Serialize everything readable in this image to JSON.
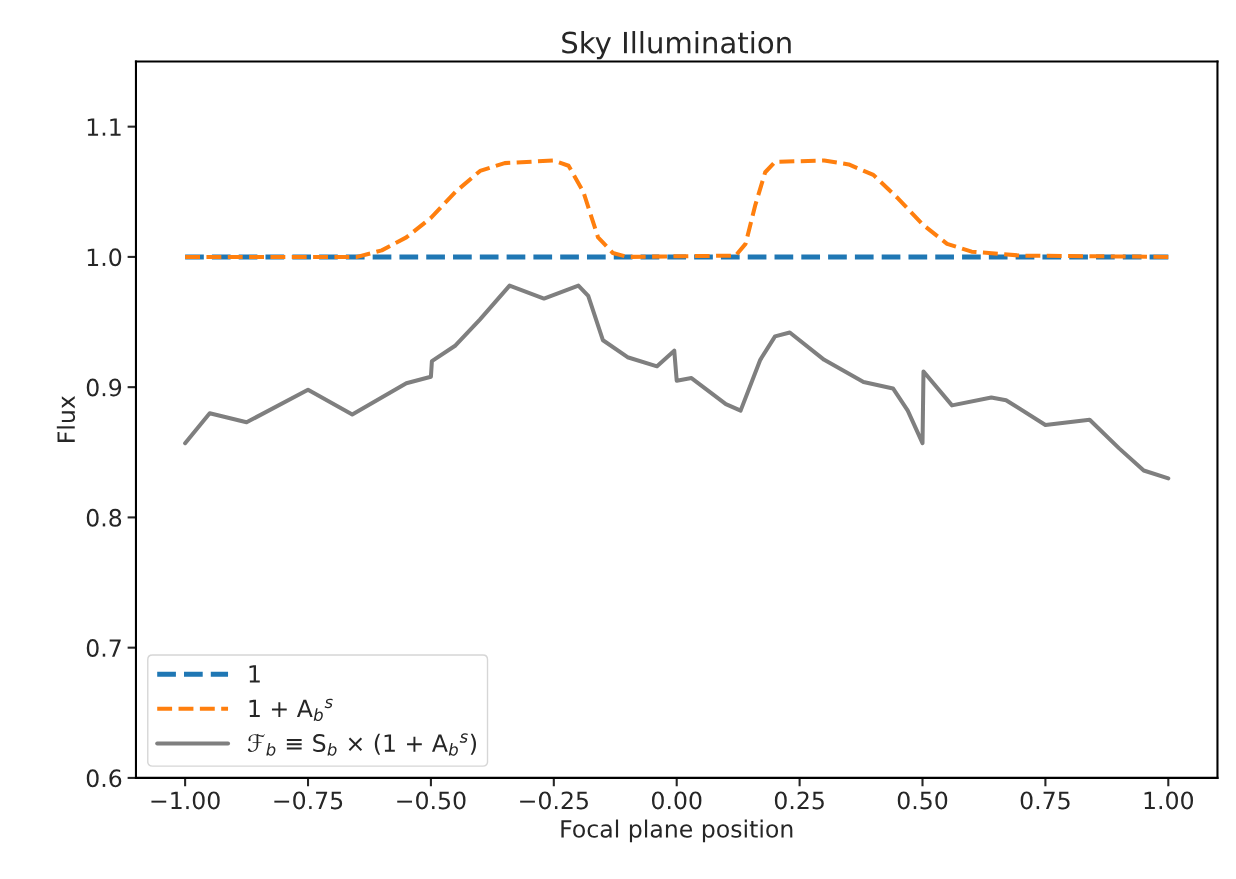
{
  "chart_data": {
    "type": "line",
    "title": "Sky Illumination",
    "xlabel": "Focal plane position",
    "ylabel": "Flux",
    "xlim": [
      -1.1,
      1.1
    ],
    "xticks": [
      {
        "value": -1.0,
        "label": "−1.00"
      },
      {
        "value": -0.75,
        "label": "−0.75"
      },
      {
        "value": -0.5,
        "label": "−0.50"
      },
      {
        "value": -0.25,
        "label": "−0.25"
      },
      {
        "value": 0.0,
        "label": "0.00"
      },
      {
        "value": 0.25,
        "label": "0.25"
      },
      {
        "value": 0.5,
        "label": "0.50"
      },
      {
        "value": 0.75,
        "label": "0.75"
      },
      {
        "value": 1.0,
        "label": "1.00"
      }
    ],
    "ylim": [
      0.6,
      1.15
    ],
    "yticks": [
      {
        "value": 0.6,
        "label": "0.6"
      },
      {
        "value": 0.7,
        "label": "0.7"
      },
      {
        "value": 0.8,
        "label": "0.8"
      },
      {
        "value": 0.9,
        "label": "0.9"
      },
      {
        "value": 1.0,
        "label": "1.0"
      },
      {
        "value": 1.1,
        "label": "1.1"
      }
    ],
    "legend": "bottom left",
    "grid": false,
    "series": [
      {
        "name": "1",
        "color": "#1f77b4",
        "line_style": "dashed",
        "x": [
          -1.0,
          1.0
        ],
        "values": [
          1.0,
          1.0
        ]
      },
      {
        "name": "1 + A$_{b}$$^{s}$",
        "color": "#ff7f0e",
        "line_style": "dashed",
        "x": [
          -1.0,
          -0.65,
          -0.6,
          -0.55,
          -0.5,
          -0.45,
          -0.4,
          -0.35,
          -0.25,
          -0.22,
          -0.19,
          -0.16,
          -0.13,
          -0.1,
          0.12,
          0.14,
          0.16,
          0.18,
          0.2,
          0.3,
          0.35,
          0.4,
          0.45,
          0.5,
          0.55,
          0.6,
          0.7,
          1.0
        ],
        "values": [
          1.0,
          1.0,
          1.005,
          1.015,
          1.03,
          1.05,
          1.066,
          1.072,
          1.074,
          1.07,
          1.05,
          1.015,
          1.003,
          1.0,
          1.001,
          1.01,
          1.04,
          1.065,
          1.073,
          1.074,
          1.071,
          1.063,
          1.045,
          1.025,
          1.01,
          1.004,
          1.001,
          1.0
        ]
      },
      {
        "name": "ℱ$_{b}$ ≡ S$_{b}$ × (1 + A$_{b}$$^{s}$)",
        "color": "#7f7f7f",
        "line_style": "solid",
        "x": [
          -1.0,
          -0.95,
          -0.875,
          -0.75,
          -0.66,
          -0.55,
          -0.5,
          -0.498,
          -0.45,
          -0.4,
          -0.34,
          -0.27,
          -0.2,
          -0.18,
          -0.15,
          -0.1,
          -0.04,
          -0.005,
          0.0,
          0.03,
          0.1,
          0.13,
          0.17,
          0.2,
          0.23,
          0.3,
          0.38,
          0.44,
          0.47,
          0.5,
          0.502,
          0.56,
          0.64,
          0.67,
          0.75,
          0.84,
          0.9,
          0.95,
          1.0
        ],
        "values": [
          0.857,
          0.88,
          0.873,
          0.898,
          0.879,
          0.903,
          0.908,
          0.92,
          0.932,
          0.952,
          0.978,
          0.968,
          0.978,
          0.97,
          0.936,
          0.923,
          0.916,
          0.928,
          0.905,
          0.907,
          0.887,
          0.882,
          0.921,
          0.939,
          0.942,
          0.921,
          0.904,
          0.899,
          0.882,
          0.857,
          0.912,
          0.886,
          0.892,
          0.89,
          0.871,
          0.875,
          0.853,
          0.836,
          0.83
        ]
      }
    ]
  }
}
